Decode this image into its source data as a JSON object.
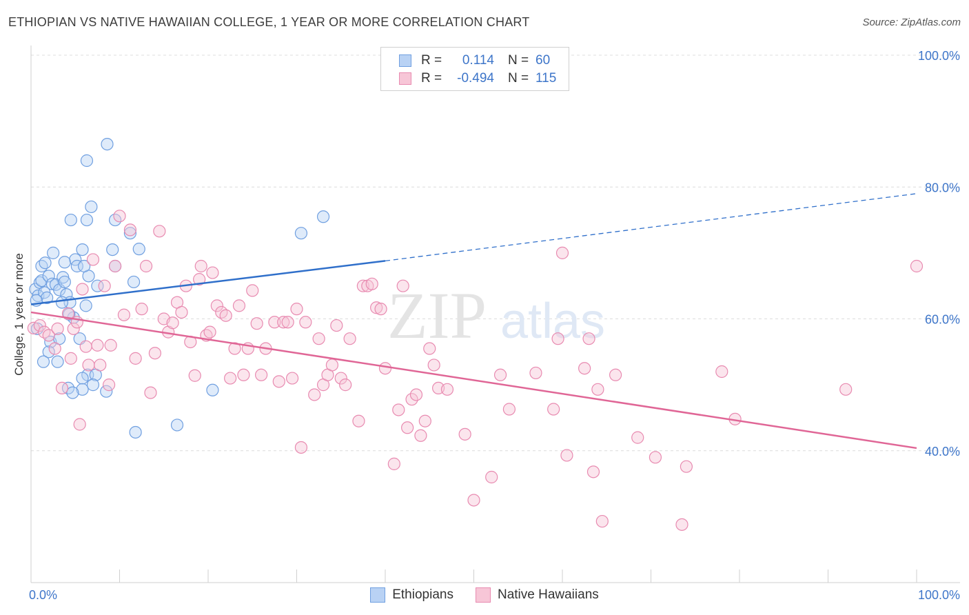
{
  "header": {
    "title": "ETHIOPIAN VS NATIVE HAWAIIAN COLLEGE, 1 YEAR OR MORE CORRELATION CHART",
    "source": "Source: ZipAtlas.com"
  },
  "watermark": {
    "zip": "ZIP",
    "atlas": "atlas"
  },
  "legend": {
    "rows": [
      {
        "r_label": "R =",
        "r_value": "0.114",
        "n_label": "N =",
        "n_value": "60",
        "color": "#6f9fe0",
        "fill": "#b9d2f4"
      },
      {
        "r_label": "R =",
        "r_value": "-0.494",
        "n_label": "N =",
        "n_value": "115",
        "color": "#e88ab0",
        "fill": "#f7c6d7"
      }
    ]
  },
  "bottom_legend": [
    {
      "label": "Ethiopians",
      "color": "#6f9fe0",
      "fill": "#b9d2f4"
    },
    {
      "label": "Native Hawaiians",
      "color": "#e88ab0",
      "fill": "#f7c6d7"
    }
  ],
  "chart_data": {
    "type": "scatter",
    "title": "ETHIOPIAN VS NATIVE HAWAIIAN COLLEGE, 1 YEAR OR MORE CORRELATION CHART",
    "xlabel": "",
    "ylabel": "College, 1 year or more",
    "xlim": [
      0,
      100
    ],
    "ylim": [
      20,
      100
    ],
    "x_tick_labels": [
      "0.0%",
      "100.0%"
    ],
    "y_tick_labels": [
      "100.0%",
      "80.0%",
      "60.0%",
      "40.0%"
    ],
    "y_ticks": [
      100,
      80,
      60,
      40
    ],
    "grid": true,
    "series": [
      {
        "name": "Ethiopians",
        "color": "#6f9fe0",
        "fill": "#b9d2f4",
        "line_color": "#2f6fca",
        "r": 0.114,
        "n": 60,
        "trend": {
          "x0": 0,
          "y0": 62.2,
          "x1": 40,
          "y1": 68.8,
          "x_extend": 100,
          "y_extend": 79.0
        },
        "points": [
          [
            0.5,
            64.5
          ],
          [
            0.8,
            63.5
          ],
          [
            1.0,
            65.5
          ],
          [
            1.2,
            65.8
          ],
          [
            1.5,
            64.0
          ],
          [
            1.8,
            63.2
          ],
          [
            2.0,
            66.5
          ],
          [
            2.4,
            65.3
          ],
          [
            2.8,
            65.2
          ],
          [
            3.2,
            64.4
          ],
          [
            3.6,
            66.3
          ],
          [
            3.8,
            65.6
          ],
          [
            4.0,
            63.7
          ],
          [
            4.4,
            62.5
          ],
          [
            5.0,
            69.0
          ],
          [
            5.2,
            68.0
          ],
          [
            6.2,
            62.0
          ],
          [
            6.5,
            66.5
          ],
          [
            7.5,
            65.0
          ],
          [
            0.6,
            62.8
          ],
          [
            1.2,
            68.0
          ],
          [
            1.6,
            68.5
          ],
          [
            2.5,
            70.0
          ],
          [
            3.8,
            68.6
          ],
          [
            5.8,
            70.5
          ],
          [
            6.0,
            68.0
          ],
          [
            9.5,
            68.0
          ],
          [
            9.2,
            70.5
          ],
          [
            11.6,
            65.6
          ],
          [
            12.2,
            70.6
          ],
          [
            4.5,
            75.0
          ],
          [
            6.3,
            75.0
          ],
          [
            6.8,
            77.0
          ],
          [
            9.5,
            75.0
          ],
          [
            11.2,
            73.0
          ],
          [
            6.3,
            84.0
          ],
          [
            8.6,
            86.5
          ],
          [
            30.5,
            73.0
          ],
          [
            33.0,
            75.5
          ],
          [
            0.7,
            58.5
          ],
          [
            2.2,
            56.5
          ],
          [
            3.2,
            57.0
          ],
          [
            5.5,
            57.0
          ],
          [
            2.0,
            55.0
          ],
          [
            1.4,
            53.5
          ],
          [
            3.0,
            53.5
          ],
          [
            6.4,
            51.5
          ],
          [
            5.8,
            51.0
          ],
          [
            7.3,
            51.5
          ],
          [
            4.2,
            49.5
          ],
          [
            5.8,
            49.3
          ],
          [
            7.0,
            50.0
          ],
          [
            8.5,
            49.0
          ],
          [
            4.7,
            48.8
          ],
          [
            11.8,
            42.8
          ],
          [
            16.5,
            43.9
          ],
          [
            20.5,
            49.2
          ],
          [
            4.8,
            60.2
          ],
          [
            4.3,
            60.7
          ],
          [
            3.5,
            62.5
          ]
        ]
      },
      {
        "name": "Native Hawaiians",
        "color": "#e88ab0",
        "fill": "#f7c6d7",
        "line_color": "#e06696",
        "r": -0.494,
        "n": 115,
        "trend": {
          "x0": 0,
          "y0": 61.0,
          "x1": 100,
          "y1": 40.4
        },
        "points": [
          [
            0.3,
            58.6
          ],
          [
            1.0,
            59.0
          ],
          [
            1.5,
            58.0
          ],
          [
            2.0,
            57.5
          ],
          [
            2.7,
            55.5
          ],
          [
            3.0,
            58.5
          ],
          [
            3.5,
            49.5
          ],
          [
            4.2,
            60.8
          ],
          [
            4.5,
            54.0
          ],
          [
            4.8,
            58.5
          ],
          [
            5.2,
            59.5
          ],
          [
            5.5,
            44.0
          ],
          [
            5.8,
            64.5
          ],
          [
            6.2,
            55.8
          ],
          [
            6.5,
            53.0
          ],
          [
            7.0,
            69.0
          ],
          [
            7.5,
            56.0
          ],
          [
            7.8,
            53.0
          ],
          [
            8.3,
            65.0
          ],
          [
            8.8,
            50.0
          ],
          [
            9.0,
            56.0
          ],
          [
            9.5,
            68.0
          ],
          [
            10.0,
            75.6
          ],
          [
            10.5,
            60.6
          ],
          [
            11.2,
            73.5
          ],
          [
            11.8,
            54.0
          ],
          [
            12.5,
            61.5
          ],
          [
            13.0,
            68.0
          ],
          [
            13.5,
            48.8
          ],
          [
            14.0,
            54.8
          ],
          [
            14.5,
            73.3
          ],
          [
            15.0,
            60.0
          ],
          [
            15.5,
            58.0
          ],
          [
            16.0,
            59.4
          ],
          [
            16.5,
            62.5
          ],
          [
            17.0,
            61.0
          ],
          [
            17.5,
            65.0
          ],
          [
            18.0,
            56.5
          ],
          [
            18.5,
            51.4
          ],
          [
            19.0,
            66.0
          ],
          [
            19.2,
            68.0
          ],
          [
            19.8,
            57.5
          ],
          [
            20.2,
            58.0
          ],
          [
            20.5,
            67.0
          ],
          [
            21.0,
            62.0
          ],
          [
            21.5,
            61.0
          ],
          [
            22.0,
            60.5
          ],
          [
            22.5,
            51.0
          ],
          [
            23.0,
            55.5
          ],
          [
            23.5,
            62.0
          ],
          [
            24.0,
            51.5
          ],
          [
            24.5,
            55.5
          ],
          [
            25.0,
            64.3
          ],
          [
            25.5,
            59.3
          ],
          [
            26.0,
            51.5
          ],
          [
            26.5,
            55.5
          ],
          [
            27.5,
            59.5
          ],
          [
            28.0,
            50.5
          ],
          [
            28.5,
            59.5
          ],
          [
            29.0,
            59.5
          ],
          [
            29.5,
            51.0
          ],
          [
            30.0,
            61.5
          ],
          [
            30.5,
            40.5
          ],
          [
            31.0,
            59.5
          ],
          [
            32.0,
            48.5
          ],
          [
            32.5,
            57.0
          ],
          [
            33.0,
            50.0
          ],
          [
            33.5,
            51.5
          ],
          [
            34.0,
            53.0
          ],
          [
            34.5,
            59.0
          ],
          [
            35.0,
            51.0
          ],
          [
            35.5,
            50.0
          ],
          [
            36.0,
            57.0
          ],
          [
            37.0,
            44.5
          ],
          [
            37.5,
            65.0
          ],
          [
            38.0,
            65.0
          ],
          [
            38.5,
            65.3
          ],
          [
            39.0,
            61.7
          ],
          [
            39.5,
            61.5
          ],
          [
            40.0,
            52.5
          ],
          [
            41.0,
            38.0
          ],
          [
            41.5,
            46.2
          ],
          [
            42.0,
            65.0
          ],
          [
            42.5,
            43.5
          ],
          [
            43.0,
            47.8
          ],
          [
            43.5,
            48.5
          ],
          [
            44.0,
            42.3
          ],
          [
            44.5,
            44.5
          ],
          [
            45.0,
            55.5
          ],
          [
            45.5,
            53.0
          ],
          [
            46.0,
            49.5
          ],
          [
            47.0,
            49.3
          ],
          [
            49.0,
            42.5
          ],
          [
            50.0,
            32.5
          ],
          [
            52.0,
            36.0
          ],
          [
            53.0,
            51.5
          ],
          [
            54.0,
            46.3
          ],
          [
            57.0,
            51.8
          ],
          [
            59.0,
            46.3
          ],
          [
            59.5,
            57.0
          ],
          [
            60.0,
            70.0
          ],
          [
            60.5,
            39.3
          ],
          [
            62.5,
            52.5
          ],
          [
            63.5,
            36.8
          ],
          [
            63.0,
            57.0
          ],
          [
            64.0,
            49.3
          ],
          [
            64.5,
            29.3
          ],
          [
            66.0,
            51.5
          ],
          [
            68.5,
            42.0
          ],
          [
            70.5,
            39.0
          ],
          [
            73.5,
            28.8
          ],
          [
            74.0,
            37.6
          ],
          [
            78.0,
            52.0
          ],
          [
            79.5,
            44.8
          ],
          [
            92.0,
            49.3
          ],
          [
            100.0,
            68.0
          ]
        ]
      }
    ]
  }
}
